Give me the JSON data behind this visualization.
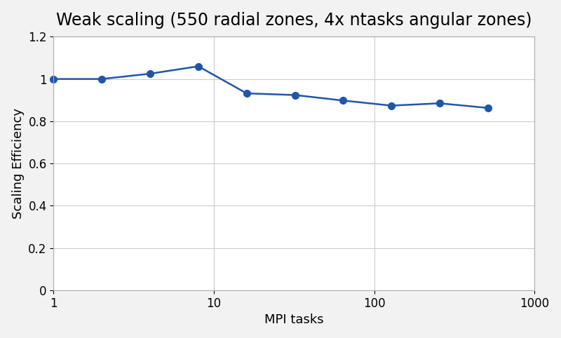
{
  "title": "Weak scaling (550 radial zones, 4x ntasks angular zones)",
  "xlabel": "MPI tasks",
  "ylabel": "Scaling Efficiency",
  "x": [
    1,
    2,
    4,
    8,
    16,
    32,
    64,
    128,
    256,
    512
  ],
  "y": [
    1.0,
    1.0,
    1.025,
    1.06,
    0.932,
    0.924,
    0.898,
    0.874,
    0.885,
    0.863
  ],
  "xlim": [
    1,
    1000
  ],
  "ylim": [
    0,
    1.2
  ],
  "yticks": [
    0,
    0.2,
    0.4,
    0.6,
    0.8,
    1.0,
    1.2
  ],
  "line_color": "#2255AA",
  "marker": "o",
  "marker_size": 7,
  "line_width": 1.8,
  "background_color": "#f2f2f2",
  "plot_bg_color": "#ffffff",
  "title_fontsize": 17,
  "axis_label_fontsize": 13,
  "tick_fontsize": 12
}
